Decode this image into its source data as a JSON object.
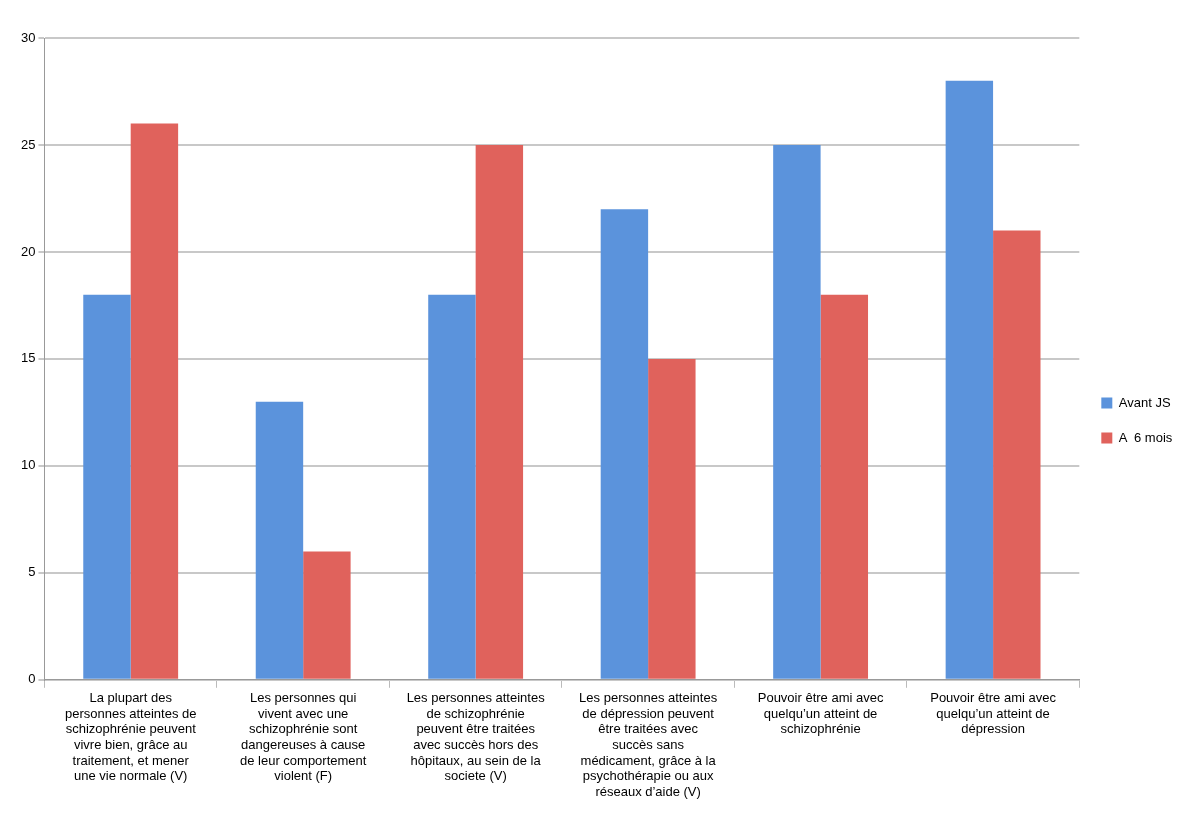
{
  "chart_data": {
    "type": "bar",
    "categories": [
      "La plupart des personnes atteintes de schizophrénie peuvent vivre bien, grâce au traitement, et mener une vie normale (V)",
      "Les personnes qui vivent avec une schizophrénie sont dangereuses à cause de leur comportement violent (F)",
      "Les personnes atteintes de schizophrénie peuvent être traitées avec succès hors des hôpitaux, au sein de la societe (V)",
      "Les personnes atteintes de dépression peuvent être traitées avec succès sans médicament, grâce à la psychothérapie ou aux réseaux d’aide (V)",
      "Pouvoir être ami avec quelqu’un atteint de schizophrénie",
      "Pouvoir être ami avec quelqu’un atteint de dépression"
    ],
    "series": [
      {
        "name": "Avant JS",
        "color": "#5b93dc",
        "values": [
          18,
          13,
          18,
          22,
          25,
          28
        ]
      },
      {
        "name": "A  6 mois",
        "color": "#e0625c",
        "values": [
          26,
          6,
          25,
          15,
          18,
          21
        ]
      }
    ],
    "ylim": [
      0,
      30
    ],
    "yticks": [
      0,
      5,
      10,
      15,
      20,
      25,
      30
    ],
    "grid": "y",
    "legend": "right"
  }
}
